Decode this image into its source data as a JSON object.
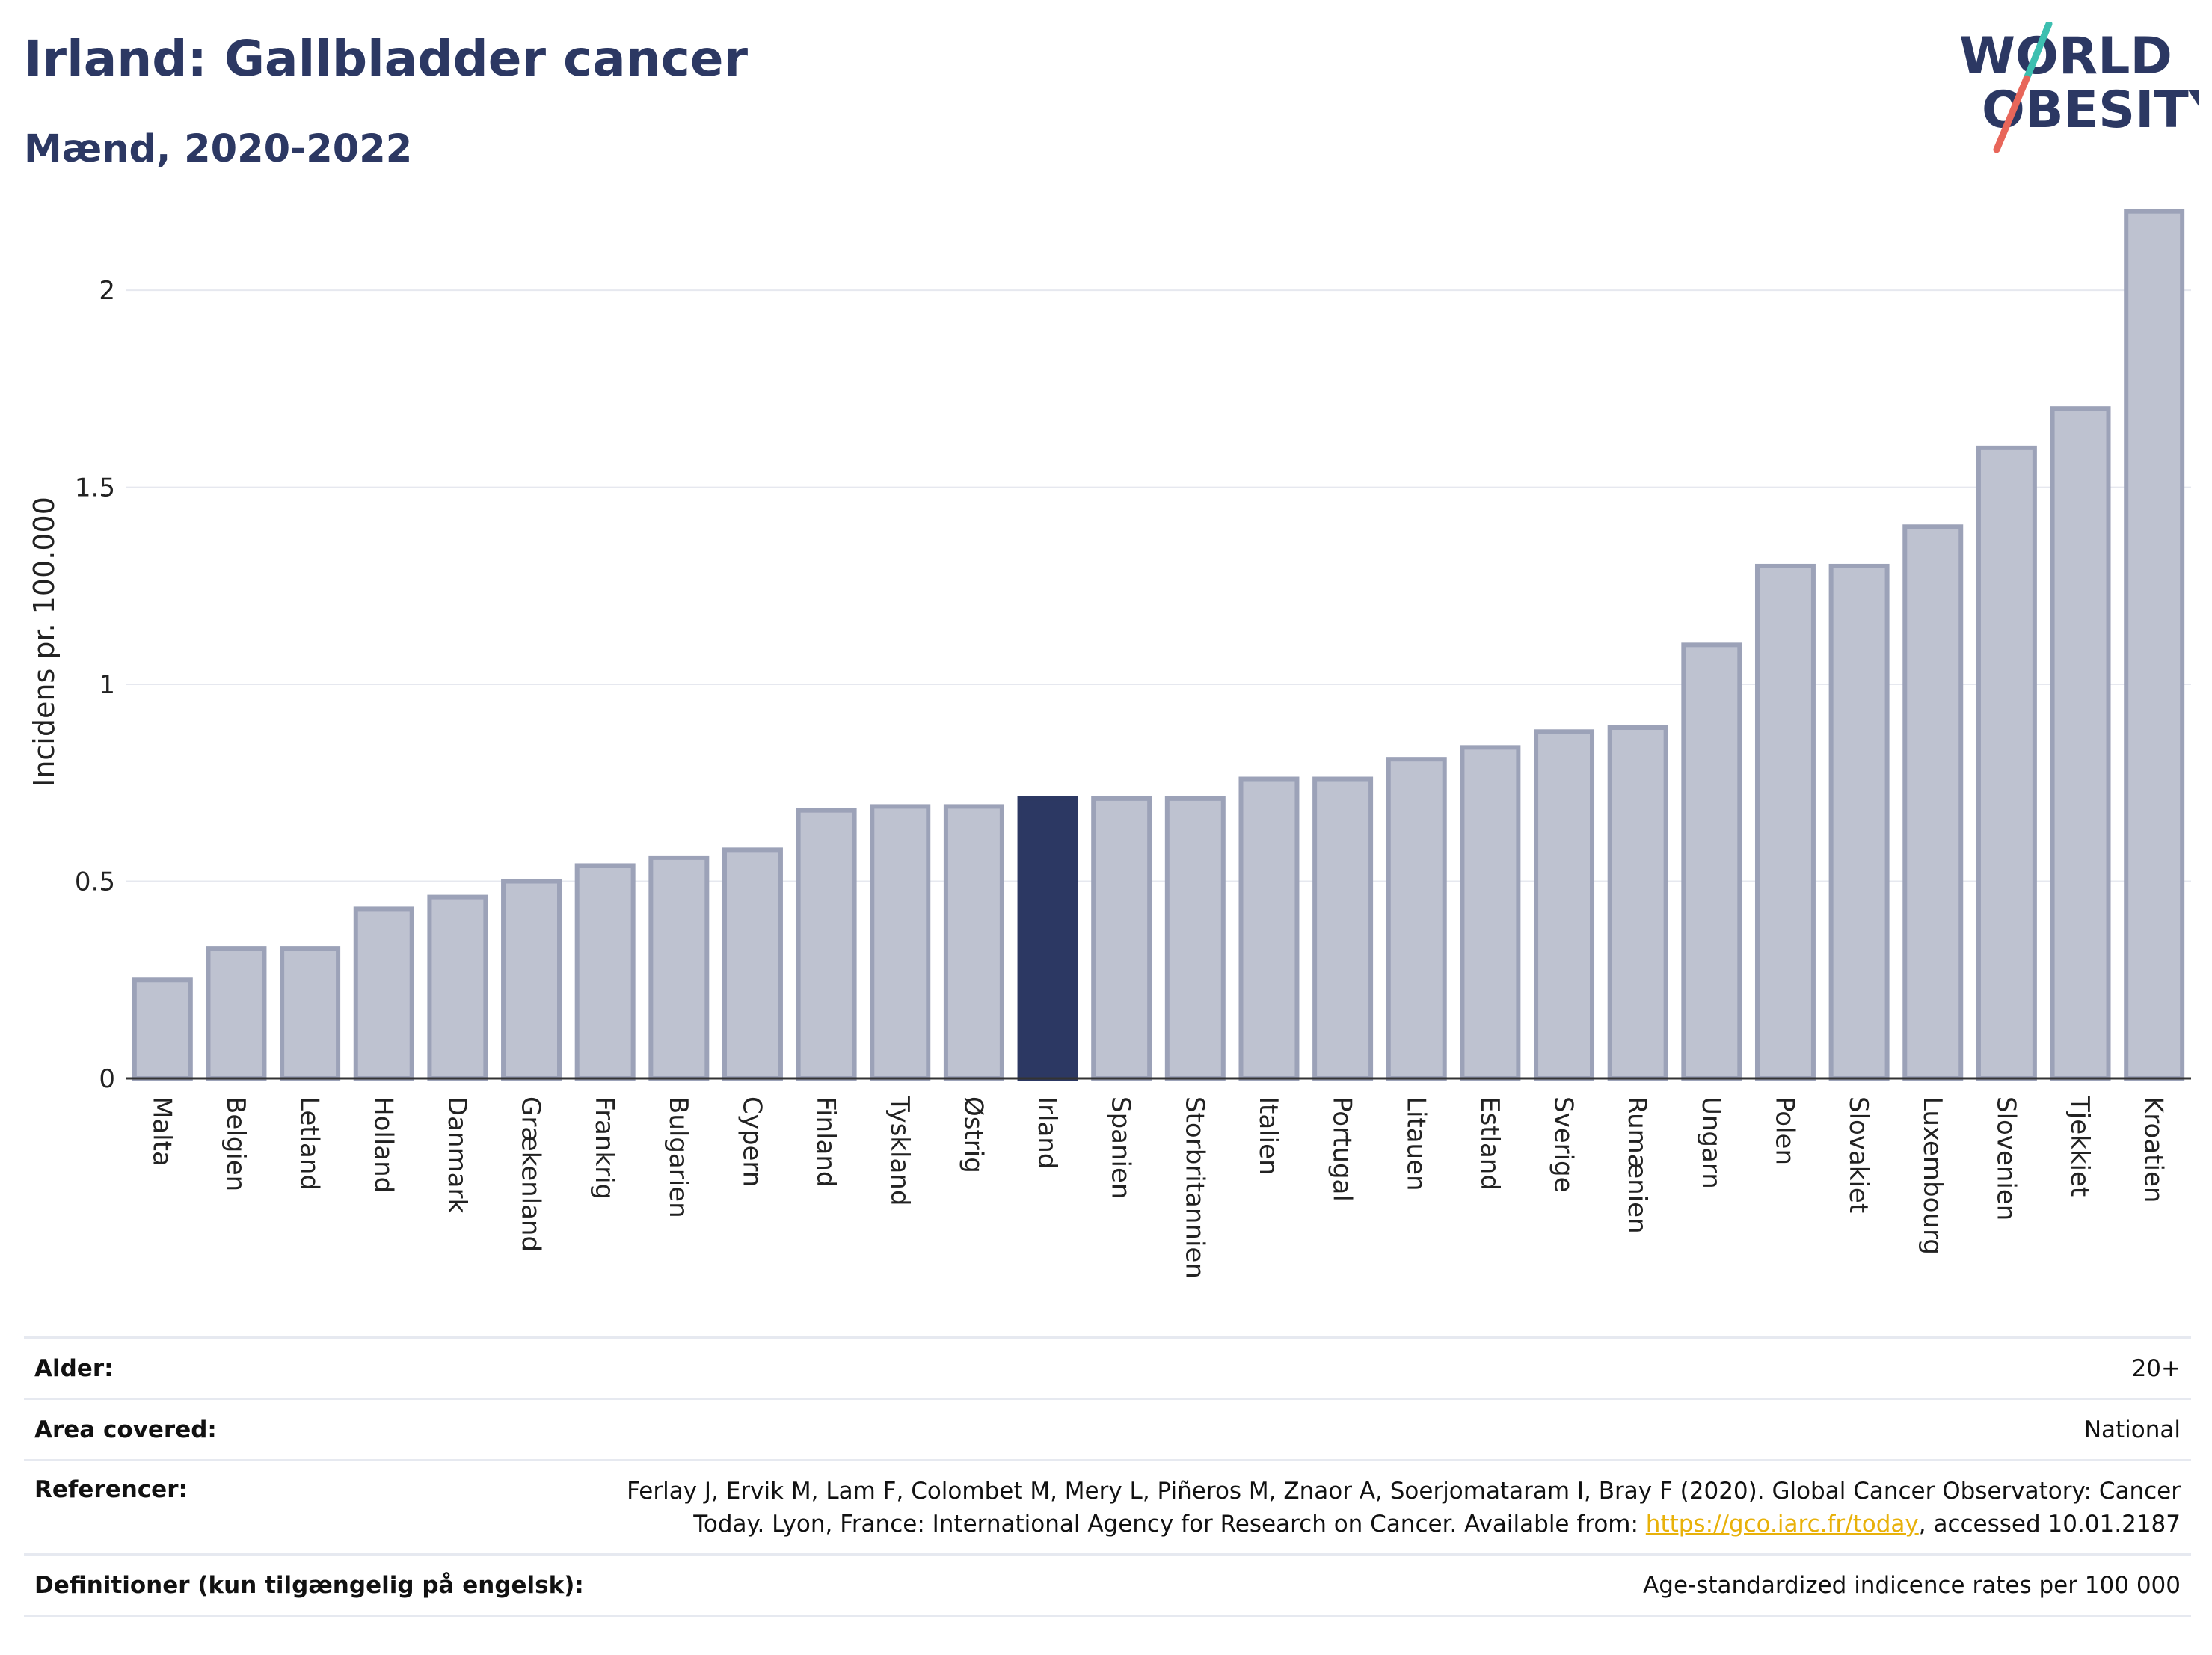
{
  "header": {
    "title": "Irland: Gallbladder cancer",
    "subtitle": "Mænd, 2020-2022"
  },
  "logo": {
    "line1": "WORLD",
    "line2": "OBESITY",
    "colors": {
      "text": "#2c3863",
      "slash_top": "#3dbfb0",
      "slash_bottom": "#e8665a"
    }
  },
  "colors": {
    "bar": "#bec2d0",
    "bar_border": "#9ca2b8",
    "highlight": "#2c3863",
    "grid": "#e6e8ef",
    "link": "#e8b10a"
  },
  "chart_data": {
    "type": "bar",
    "title": "Irland: Gallbladder cancer",
    "subtitle": "Mænd, 2020-2022",
    "xlabel": "",
    "ylabel": "Incidens pr. 100.000",
    "ylim": [
      0,
      2.3
    ],
    "yticks": [
      0,
      0.5,
      1,
      1.5,
      2
    ],
    "ytick_labels": [
      "0",
      "0.5",
      "1",
      "1.5",
      "2"
    ],
    "grid": true,
    "highlight": "Irland",
    "categories": [
      "Malta",
      "Belgien",
      "Letland",
      "Holland",
      "Danmark",
      "Grækenland",
      "Frankrig",
      "Bulgarien",
      "Cypern",
      "Finland",
      "Tyskland",
      "Østrig",
      "Irland",
      "Spanien",
      "Storbritannien",
      "Italien",
      "Portugal",
      "Litauen",
      "Estland",
      "Sverige",
      "Rumænien",
      "Ungarn",
      "Polen",
      "Slovakiet",
      "Luxembourg",
      "Slovenien",
      "Tjekkiet",
      "Kroatien"
    ],
    "values": [
      0.25,
      0.33,
      0.33,
      0.43,
      0.46,
      0.5,
      0.54,
      0.56,
      0.58,
      0.68,
      0.69,
      0.69,
      0.71,
      0.71,
      0.71,
      0.76,
      0.76,
      0.81,
      0.84,
      0.88,
      0.89,
      1.1,
      1.3,
      1.3,
      1.4,
      1.6,
      1.7,
      2.2
    ]
  },
  "info_table": {
    "age_label": "Alder:",
    "age_value": "20+",
    "area_label": "Area covered:",
    "area_value": "National",
    "ref_label": "Referencer:",
    "ref_line1": "Ferlay J, Ervik M, Lam F, Colombet M, Mery L, Piñeros M, Znaor A, Soerjomataram I, Bray F (2020). Global Cancer Observatory: Cancer",
    "ref_line2_pre": "Today. Lyon, France: International Agency for Research on Cancer. Available from: ",
    "ref_link": "https://gco.iarc.fr/today",
    "ref_line2_post": ", accessed 10.01.2187",
    "def_label": "Definitioner (kun tilgængelig på engelsk):",
    "def_value": "Age-standardized indicence rates per 100 000"
  }
}
